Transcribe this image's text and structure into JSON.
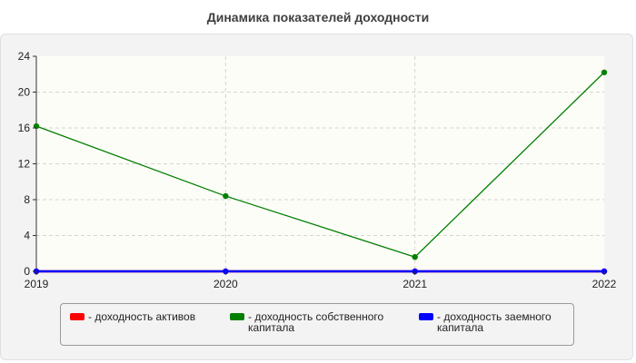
{
  "chart_data": {
    "type": "line",
    "title": "Динамика показателей доходности",
    "x": [
      "2019",
      "2020",
      "2021",
      "2022"
    ],
    "ylim": [
      0,
      24
    ],
    "yticks": [
      "0",
      "4",
      "8",
      "12",
      "16",
      "20",
      "24"
    ],
    "grid": true,
    "legend_position": "bottom",
    "series": [
      {
        "name": "- доходность активов",
        "color": "#ff0000",
        "values": [
          0,
          0,
          0,
          0
        ]
      },
      {
        "name": "- доходность собственного капитала",
        "color": "#008000",
        "values": [
          16.2,
          8.4,
          1.6,
          22.2
        ]
      },
      {
        "name": "- доходность заемного капитала",
        "color": "#0000ff",
        "values": [
          0,
          0,
          0,
          0
        ]
      }
    ]
  }
}
